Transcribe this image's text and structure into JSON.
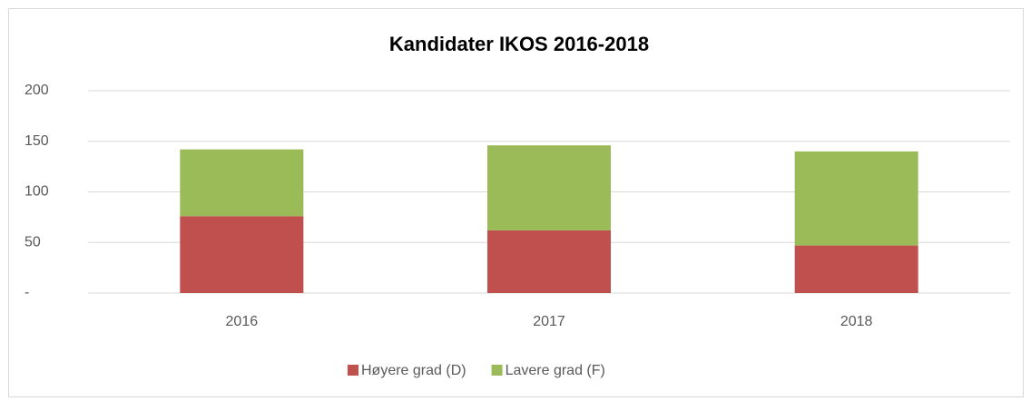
{
  "chart_data": {
    "type": "stacked_bar",
    "title": "Kandidater IKOS 2016-2018",
    "categories": [
      "2016",
      "2017",
      "2018"
    ],
    "series": [
      {
        "name": "Høyere grad (D)",
        "color": "#c0504d",
        "values": [
          76,
          62,
          47
        ]
      },
      {
        "name": "Lavere grad (F)",
        "color": "#9bbb59",
        "values": [
          66,
          84,
          93
        ]
      }
    ],
    "ylim": [
      0,
      200
    ],
    "yticks": [
      {
        "value": 0,
        "label": "-"
      },
      50,
      100,
      150,
      200
    ],
    "grid": true,
    "legend": "bottom"
  }
}
